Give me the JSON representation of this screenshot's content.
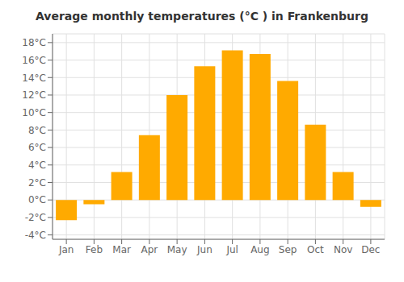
{
  "chart_data": {
    "type": "bar",
    "title": "Average monthly temperatures (°C ) in Frankenburg",
    "categories": [
      "Jan",
      "Feb",
      "Mar",
      "Apr",
      "May",
      "Jun",
      "Jul",
      "Aug",
      "Sep",
      "Oct",
      "Nov",
      "Dec"
    ],
    "values": [
      -2.3,
      -0.5,
      3.2,
      7.4,
      12.0,
      15.3,
      17.1,
      16.7,
      13.6,
      8.6,
      3.2,
      -0.8
    ],
    "color": "#FFAA00",
    "ylim": [
      -4.5,
      19
    ],
    "yticks": [
      {
        "value": -4,
        "label": "-4°C"
      },
      {
        "value": -2,
        "label": "-2°C"
      },
      {
        "value": 0,
        "label": "0°C"
      },
      {
        "value": 2,
        "label": "2°C"
      },
      {
        "value": 4,
        "label": "4°C"
      },
      {
        "value": 6,
        "label": "6°C"
      },
      {
        "value": 8,
        "label": "8°C"
      },
      {
        "value": 10,
        "label": "10°C"
      },
      {
        "value": 12,
        "label": "12°C"
      },
      {
        "value": 14,
        "label": "14°C"
      },
      {
        "value": 16,
        "label": "16°C"
      },
      {
        "value": 18,
        "label": "18°C"
      }
    ],
    "grid": true
  }
}
